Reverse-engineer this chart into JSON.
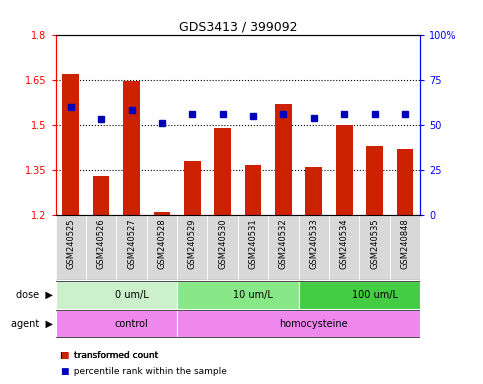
{
  "title": "GDS3413 / 399092",
  "samples": [
    "GSM240525",
    "GSM240526",
    "GSM240527",
    "GSM240528",
    "GSM240529",
    "GSM240530",
    "GSM240531",
    "GSM240532",
    "GSM240533",
    "GSM240534",
    "GSM240535",
    "GSM240848"
  ],
  "red_values": [
    1.67,
    1.33,
    1.645,
    1.21,
    1.38,
    1.49,
    1.365,
    1.57,
    1.36,
    1.5,
    1.43,
    1.42
  ],
  "blue_values": [
    60,
    53,
    58,
    51,
    56,
    56,
    55,
    56,
    54,
    56,
    56,
    56
  ],
  "ymin": 1.2,
  "ymax": 1.8,
  "y2min": 0,
  "y2max": 100,
  "yticks": [
    1.2,
    1.35,
    1.5,
    1.65,
    1.8
  ],
  "ytick_labels": [
    "1.2",
    "1.35",
    "1.5",
    "1.65",
    "1.8"
  ],
  "y2ticks": [
    0,
    25,
    50,
    75,
    100
  ],
  "y2tick_labels": [
    "0",
    "25",
    "50",
    "75",
    "100%"
  ],
  "hlines": [
    1.35,
    1.5,
    1.65
  ],
  "dose_groups": [
    {
      "label": "0 um/L",
      "start": 0,
      "end": 4,
      "color": "#ccf0cc"
    },
    {
      "label": "10 um/L",
      "start": 4,
      "end": 8,
      "color": "#88e888"
    },
    {
      "label": "100 um/L",
      "start": 8,
      "end": 12,
      "color": "#44cc44"
    }
  ],
  "agent_groups": [
    {
      "label": "control",
      "start": 0,
      "end": 4,
      "color": "#ee88ee"
    },
    {
      "label": "homocysteine",
      "start": 4,
      "end": 12,
      "color": "#ee88ee"
    }
  ],
  "bar_color": "#cc2200",
  "dot_color": "#0000bb",
  "bg_color": "#d8d8d8",
  "legend_red": "transformed count",
  "legend_blue": "percentile rank within the sample",
  "dose_label": "dose",
  "agent_label": "agent"
}
